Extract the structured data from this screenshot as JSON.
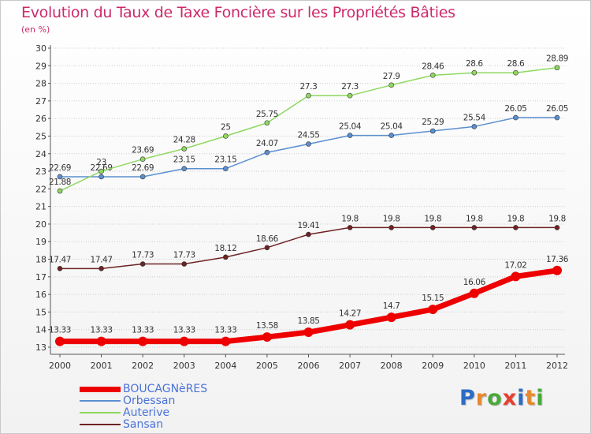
{
  "header": {
    "title": "Evolution du Taux de Taxe Foncière sur les Propriétés Bâties",
    "subtitle": "(en %)"
  },
  "logo": {
    "text": "Proxiti",
    "letters": [
      "P",
      "r",
      "o",
      "x",
      "i",
      "t",
      "i"
    ]
  },
  "colors": {
    "boucagneres": "#ee0000",
    "orbessan": "#5b8fd0",
    "auterive": "#8fd860",
    "sansan": "#6e2225",
    "axis": "#555555",
    "grid": "#cccccc",
    "title": "#cc2a6a"
  },
  "chart_data": {
    "type": "line",
    "title": "Evolution du Taux de Taxe Foncière sur les Propriétés Bâties",
    "ylabel": "(en %)",
    "xlabel": "",
    "x": [
      "2000",
      "2001",
      "2002",
      "2003",
      "2004",
      "2005",
      "2006",
      "2007",
      "2008",
      "2009",
      "2010",
      "2011",
      "2012"
    ],
    "ylim": [
      13,
      30
    ],
    "yticks": [
      13,
      14,
      15,
      16,
      17,
      18,
      19,
      20,
      21,
      22,
      23,
      24,
      25,
      26,
      27,
      28,
      29,
      30
    ],
    "grid": "horizontal",
    "legend_position": "bottom-left",
    "series": [
      {
        "name": "BOUCAGNèRES",
        "color": "#ee0000",
        "width": 7,
        "marker_r": 6,
        "values": [
          13.33,
          13.33,
          13.33,
          13.33,
          13.33,
          13.58,
          13.85,
          14.27,
          14.7,
          15.15,
          16.06,
          17.02,
          17.36
        ],
        "labels": [
          "13.33",
          "13.33",
          "13.33",
          "13.33",
          "13.33",
          "13.58",
          "13.85",
          "14.27",
          "14.7",
          "15.15",
          "16.06",
          "17.02",
          "17.36"
        ]
      },
      {
        "name": "Orbessan",
        "color": "#5b8fd0",
        "width": 1.5,
        "marker_r": 3,
        "values": [
          22.69,
          22.69,
          22.69,
          23.15,
          23.15,
          24.07,
          24.55,
          25.04,
          25.04,
          25.29,
          25.54,
          26.05,
          26.05
        ],
        "labels": [
          "22.69",
          "22.69",
          "22.69",
          "23.15",
          "23.15",
          "24.07",
          "24.55",
          "25.04",
          "25.04",
          "25.29",
          "25.54",
          "26.05",
          "26.05"
        ]
      },
      {
        "name": "Auterive",
        "color": "#8fd860",
        "width": 1.5,
        "marker_r": 3,
        "values": [
          21.88,
          23,
          23.69,
          24.28,
          25,
          25.75,
          27.3,
          27.3,
          27.9,
          28.46,
          28.6,
          28.6,
          28.89
        ],
        "labels": [
          "21.88",
          "23",
          "23.69",
          "24.28",
          "25",
          "25.75",
          "27.3",
          "27.3",
          "27.9",
          "28.46",
          "28.6",
          "28.6",
          "28.89"
        ]
      },
      {
        "name": "Sansan",
        "color": "#6e2225",
        "width": 1.5,
        "marker_r": 3,
        "values": [
          17.47,
          17.47,
          17.73,
          17.73,
          18.12,
          18.66,
          19.41,
          19.8,
          19.8,
          19.8,
          19.8,
          19.8,
          19.8
        ],
        "labels": [
          "17.47",
          "17.47",
          "17.73",
          "17.73",
          "18.12",
          "18.66",
          "19.41",
          "19.8",
          "19.8",
          "19.8",
          "19.8",
          "19.8",
          "19.8"
        ]
      }
    ]
  }
}
